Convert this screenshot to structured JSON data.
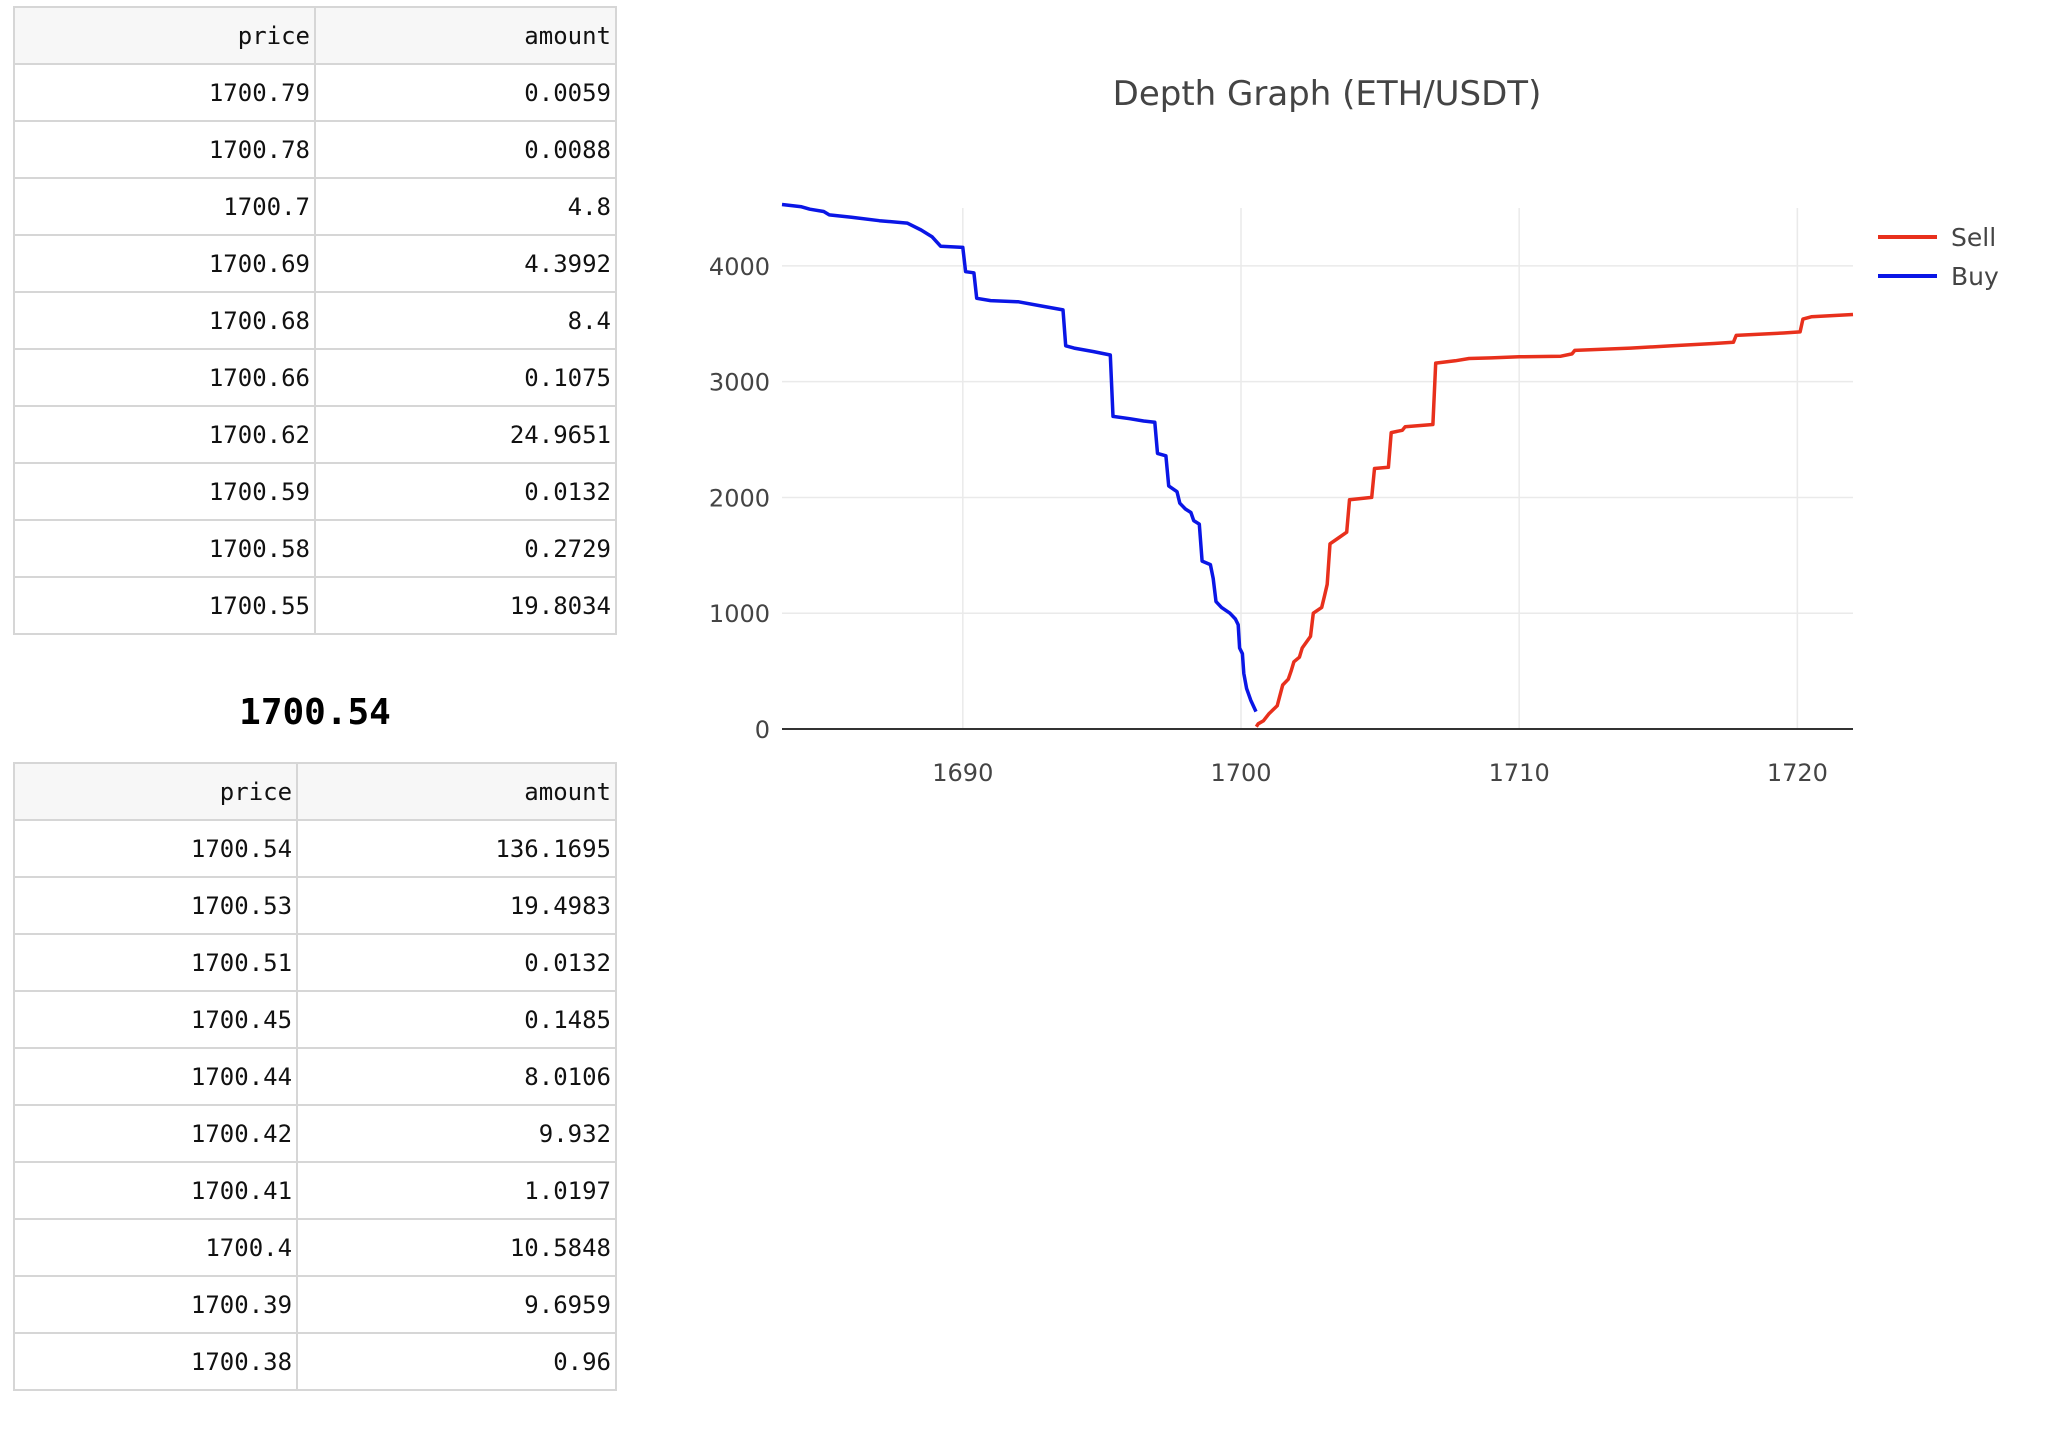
{
  "asks_table": {
    "headers": {
      "price": "price",
      "amount": "amount"
    },
    "rows": [
      {
        "price": "1700.79",
        "amount": "0.0059"
      },
      {
        "price": "1700.78",
        "amount": "0.0088"
      },
      {
        "price": "1700.7",
        "amount": "4.8"
      },
      {
        "price": "1700.69",
        "amount": "4.3992"
      },
      {
        "price": "1700.68",
        "amount": "8.4"
      },
      {
        "price": "1700.66",
        "amount": "0.1075"
      },
      {
        "price": "1700.62",
        "amount": "24.9651"
      },
      {
        "price": "1700.59",
        "amount": "0.0132"
      },
      {
        "price": "1700.58",
        "amount": "0.2729"
      },
      {
        "price": "1700.55",
        "amount": "19.8034"
      }
    ]
  },
  "mid_price": "1700.54",
  "bids_table": {
    "headers": {
      "price": "price",
      "amount": "amount"
    },
    "rows": [
      {
        "price": "1700.54",
        "amount": "136.1695"
      },
      {
        "price": "1700.53",
        "amount": "19.4983"
      },
      {
        "price": "1700.51",
        "amount": "0.0132"
      },
      {
        "price": "1700.45",
        "amount": "0.1485"
      },
      {
        "price": "1700.44",
        "amount": "8.0106"
      },
      {
        "price": "1700.42",
        "amount": "9.932"
      },
      {
        "price": "1700.41",
        "amount": "1.0197"
      },
      {
        "price": "1700.4",
        "amount": "10.5848"
      },
      {
        "price": "1700.39",
        "amount": "9.6959"
      },
      {
        "price": "1700.38",
        "amount": "0.96"
      }
    ]
  },
  "chart_data": {
    "type": "line",
    "title": "Depth Graph (ETH/USDT)",
    "xlabel": "",
    "ylabel": "",
    "xlim": [
      1683.5,
      1722
    ],
    "ylim": [
      0,
      4500
    ],
    "x_ticks": [
      1690,
      1700,
      1710,
      1720
    ],
    "y_ticks": [
      0,
      1000,
      2000,
      3000,
      4000
    ],
    "grid": true,
    "legend_position": "top-right",
    "series": [
      {
        "name": "Sell",
        "color": "#e8301c",
        "points": [
          [
            1700.55,
            20
          ],
          [
            1700.62,
            45
          ],
          [
            1700.8,
            70
          ],
          [
            1701.0,
            130
          ],
          [
            1701.3,
            200
          ],
          [
            1701.5,
            380
          ],
          [
            1701.7,
            430
          ],
          [
            1701.8,
            500
          ],
          [
            1701.9,
            580
          ],
          [
            1702.1,
            620
          ],
          [
            1702.2,
            700
          ],
          [
            1702.5,
            800
          ],
          [
            1702.6,
            1000
          ],
          [
            1702.9,
            1050
          ],
          [
            1703.0,
            1150
          ],
          [
            1703.1,
            1250
          ],
          [
            1703.2,
            1600
          ],
          [
            1703.5,
            1650
          ],
          [
            1703.8,
            1700
          ],
          [
            1703.9,
            1980
          ],
          [
            1704.7,
            2000
          ],
          [
            1704.8,
            2250
          ],
          [
            1705.3,
            2260
          ],
          [
            1705.4,
            2560
          ],
          [
            1705.8,
            2580
          ],
          [
            1705.9,
            2610
          ],
          [
            1706.9,
            2630
          ],
          [
            1707.0,
            3160
          ],
          [
            1707.7,
            3180
          ],
          [
            1708.2,
            3200
          ],
          [
            1709.0,
            3205
          ],
          [
            1710.0,
            3215
          ],
          [
            1711.5,
            3220
          ],
          [
            1711.9,
            3240
          ],
          [
            1712.0,
            3270
          ],
          [
            1714.0,
            3290
          ],
          [
            1715.5,
            3310
          ],
          [
            1717.0,
            3330
          ],
          [
            1717.7,
            3340
          ],
          [
            1717.8,
            3400
          ],
          [
            1719.5,
            3420
          ],
          [
            1720.1,
            3430
          ],
          [
            1720.2,
            3540
          ],
          [
            1720.5,
            3560
          ],
          [
            1722,
            3580
          ]
        ]
      },
      {
        "name": "Buy",
        "color": "#0a16e6",
        "points": [
          [
            1683.5,
            4530
          ],
          [
            1684.2,
            4510
          ],
          [
            1684.5,
            4490
          ],
          [
            1685.0,
            4470
          ],
          [
            1685.2,
            4440
          ],
          [
            1686.0,
            4420
          ],
          [
            1687.0,
            4390
          ],
          [
            1688.0,
            4370
          ],
          [
            1688.5,
            4310
          ],
          [
            1688.9,
            4250
          ],
          [
            1689.2,
            4170
          ],
          [
            1690.0,
            4160
          ],
          [
            1690.1,
            3950
          ],
          [
            1690.4,
            3940
          ],
          [
            1690.5,
            3720
          ],
          [
            1691.0,
            3700
          ],
          [
            1692.0,
            3690
          ],
          [
            1692.9,
            3650
          ],
          [
            1693.6,
            3620
          ],
          [
            1693.7,
            3310
          ],
          [
            1694.0,
            3290
          ],
          [
            1694.7,
            3260
          ],
          [
            1695.3,
            3230
          ],
          [
            1695.4,
            2700
          ],
          [
            1696.0,
            2680
          ],
          [
            1696.5,
            2660
          ],
          [
            1696.9,
            2650
          ],
          [
            1697.0,
            2380
          ],
          [
            1697.3,
            2360
          ],
          [
            1697.4,
            2100
          ],
          [
            1697.7,
            2050
          ],
          [
            1697.8,
            1950
          ],
          [
            1698.0,
            1900
          ],
          [
            1698.2,
            1870
          ],
          [
            1698.3,
            1800
          ],
          [
            1698.5,
            1770
          ],
          [
            1698.6,
            1450
          ],
          [
            1698.9,
            1420
          ],
          [
            1699.0,
            1300
          ],
          [
            1699.1,
            1100
          ],
          [
            1699.3,
            1050
          ],
          [
            1699.6,
            1000
          ],
          [
            1699.8,
            950
          ],
          [
            1699.9,
            900
          ],
          [
            1699.95,
            700
          ],
          [
            1700.05,
            650
          ],
          [
            1700.1,
            480
          ],
          [
            1700.2,
            350
          ],
          [
            1700.35,
            250
          ],
          [
            1700.54,
            150
          ]
        ]
      }
    ]
  }
}
